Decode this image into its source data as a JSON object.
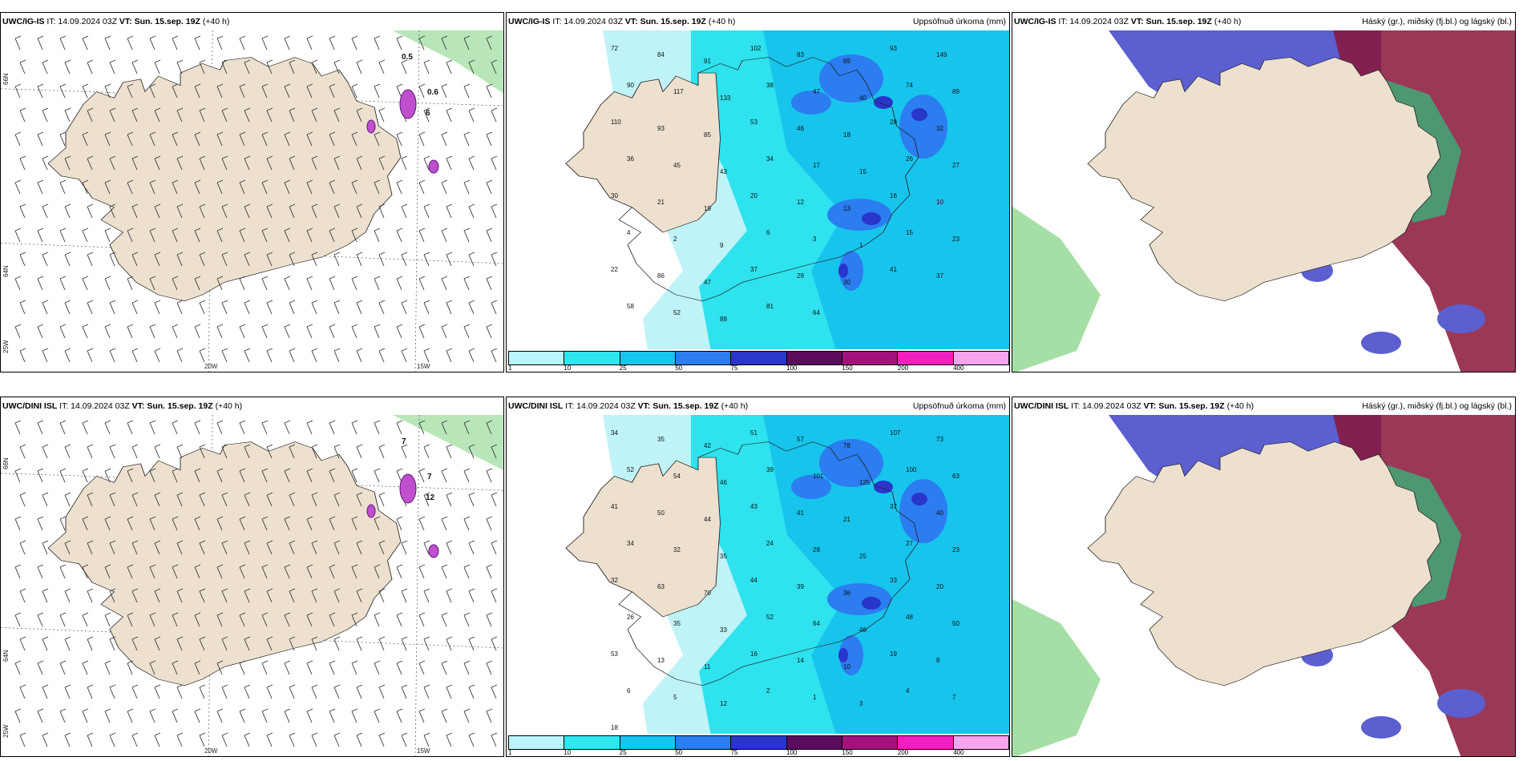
{
  "rows": [
    {
      "panels": [
        {
          "model": "UWC/IG-IS",
          "it": "IT: 14.09.2024 03Z",
          "vt_label": "VT:",
          "vt": "Sun. 15.sep. 19Z",
          "lead": "(+40 h)",
          "title": "",
          "markers": [
            "0.5",
            "0.6",
            "6"
          ]
        },
        {
          "model": "UWC/IG-IS",
          "it": "IT: 14.09.2024 03Z",
          "vt_label": "VT:",
          "vt": "Sun. 15.sep. 19Z",
          "lead": "(+40 h)",
          "title": "Uppsöfnuð úrkoma (mm)"
        },
        {
          "model": "UWC/IG-IS",
          "it": "IT: 14.09.2024 03Z",
          "vt_label": "VT:",
          "vt": "Sun. 15.sep. 19Z",
          "lead": "(+40 h)",
          "title": "Háský (gr.), miðský (fj.bl.) og lágský (bl.)"
        }
      ]
    },
    {
      "panels": [
        {
          "model": "UWC/DINI ISL",
          "it": "IT: 14.09.2024 03Z",
          "vt_label": "VT:",
          "vt": "Sun. 15.sep. 19Z",
          "lead": "(+40 h)",
          "title": "",
          "markers": [
            "7",
            "7",
            "12"
          ]
        },
        {
          "model": "UWC/DINI ISL",
          "it": "IT: 14.09.2024 03Z",
          "vt_label": "VT:",
          "vt": "Sun. 15.sep. 19Z",
          "lead": "(+40 h)",
          "title": "Uppsöfnuð úrkoma (mm)"
        },
        {
          "model": "UWC/DINI ISL",
          "it": "IT: 14.09.2024 03Z",
          "vt_label": "VT:",
          "vt": "Sun. 15.sep. 19Z",
          "lead": "(+40 h)",
          "title": "Háský (gr.), miðský (fj.bl.) og lágský (bl.)"
        }
      ]
    }
  ],
  "axes": {
    "lat66": "66N",
    "lat64": "64N",
    "lon20": "20W",
    "lon15": "15W",
    "lon25": "25W"
  },
  "legend": {
    "ticks": [
      "1",
      "10",
      "25",
      "50",
      "75",
      "100",
      "150",
      "200",
      "400"
    ],
    "colors": [
      "#b9f6fb",
      "#2fe6ef",
      "#17c6ee",
      "#2b7df0",
      "#2a35c9",
      "#5a0b5e",
      "#a3127c",
      "#f01fbf",
      "#f7a3ee"
    ]
  },
  "precip_top": [
    "72",
    "84",
    "91",
    "102",
    "83",
    "89",
    "93",
    "149",
    "90",
    "117",
    "133",
    "38",
    "47",
    "40",
    "74",
    "89",
    "110",
    "93",
    "85",
    "53",
    "46",
    "18",
    "28",
    "32",
    "36",
    "45",
    "43",
    "34",
    "17",
    "15",
    "26",
    "27",
    "30",
    "21",
    "19",
    "20",
    "12",
    "13",
    "16",
    "10",
    "4",
    "2",
    "9",
    "6",
    "3",
    "1",
    "15",
    "23",
    "22",
    "86",
    "47",
    "37",
    "29",
    "30",
    "41",
    "37",
    "58",
    "52",
    "88",
    "81",
    "64"
  ],
  "precip_bottom": [
    "34",
    "35",
    "42",
    "51",
    "57",
    "78",
    "107",
    "73",
    "52",
    "54",
    "46",
    "39",
    "101",
    "125",
    "100",
    "63",
    "41",
    "50",
    "44",
    "43",
    "41",
    "21",
    "37",
    "40",
    "34",
    "32",
    "35",
    "24",
    "28",
    "25",
    "27",
    "23",
    "32",
    "63",
    "70",
    "44",
    "39",
    "36",
    "33",
    "20",
    "26",
    "35",
    "33",
    "52",
    "64",
    "46",
    "48",
    "50",
    "53",
    "13",
    "11",
    "16",
    "14",
    "10",
    "19",
    "8",
    "6",
    "5",
    "12",
    "2",
    "1",
    "3",
    "4",
    "7",
    "18"
  ],
  "colors": {
    "land": "#ede0cf",
    "precip_light": "#bff3f7",
    "precip_mid": "#2ee2ee",
    "precip_deep": "#17c4ec",
    "high_cloud": "#7fd17f",
    "mid_cloud": "#5b5fd0",
    "low_cloud": "#8a1538"
  }
}
